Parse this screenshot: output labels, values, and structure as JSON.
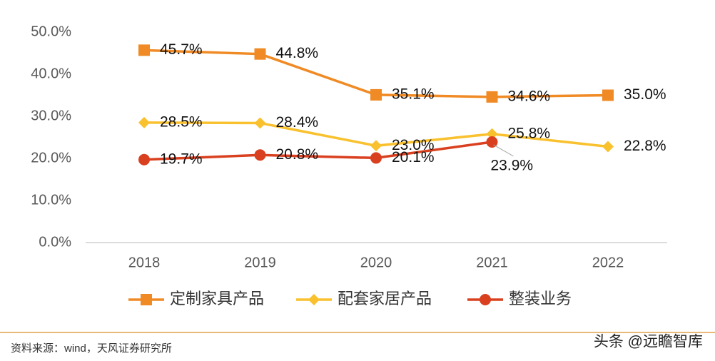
{
  "chart_data": {
    "type": "line",
    "categories": [
      "2018",
      "2019",
      "2020",
      "2021",
      "2022"
    ],
    "series": [
      {
        "name": "定制家具产品",
        "color": "#f08a24",
        "marker": "square",
        "values": [
          45.7,
          44.8,
          35.1,
          34.6,
          35.0
        ],
        "value_labels": [
          "45.7%",
          "44.8%",
          "35.1%",
          "34.6%",
          "35.0%"
        ]
      },
      {
        "name": "配套家居产品",
        "color": "#f9c12e",
        "marker": "diamond",
        "values": [
          28.5,
          28.4,
          23.0,
          25.8,
          22.8
        ],
        "value_labels": [
          "28.5%",
          "28.4%",
          "23.0%",
          "25.8%",
          "22.8%"
        ]
      },
      {
        "name": "整装业务",
        "color": "#d9401f",
        "marker": "circle",
        "values": [
          19.7,
          20.8,
          20.1,
          23.9,
          null
        ],
        "value_labels": [
          "19.7%",
          "20.8%",
          "20.1%",
          "23.9%",
          null
        ]
      }
    ],
    "ylim": [
      0,
      50
    ],
    "yticks": [
      {
        "value": 0,
        "label": "0.0%"
      },
      {
        "value": 10,
        "label": "10.0%"
      },
      {
        "value": 20,
        "label": "20.0%"
      },
      {
        "value": 30,
        "label": "30.0%"
      },
      {
        "value": 40,
        "label": "40.0%"
      },
      {
        "value": 50,
        "label": "50.0%"
      }
    ],
    "grid": false,
    "legend": "bottom",
    "source": "资料来源：wind，天风证券研究所",
    "watermark": "头条 @远瞻智库"
  }
}
